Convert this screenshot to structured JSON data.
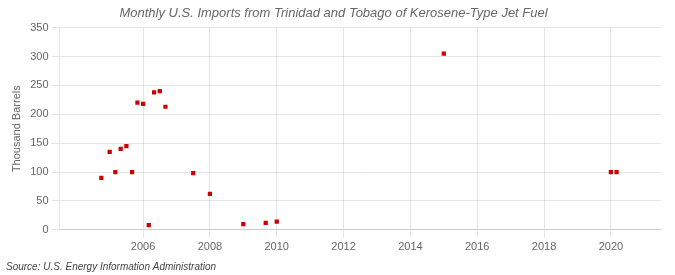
{
  "chart_data": {
    "type": "scatter",
    "title": "Monthly U.S. Imports from Trinidad and Tobago of Kerosene-Type Jet Fuel",
    "ylabel": "Thousand Barrels",
    "annotations": [
      "Source: U.S. Energy Information Administration"
    ],
    "x": [
      2004.75,
      2005.0,
      2005.17,
      2005.33,
      2005.5,
      2005.67,
      2005.83,
      2006.0,
      2006.17,
      2006.33,
      2006.5,
      2006.67,
      2007.5,
      2008.0,
      2009.0,
      2009.67,
      2010.0,
      2015.0,
      2020.0,
      2020.17
    ],
    "values": [
      90,
      135,
      100,
      140,
      145,
      100,
      220,
      218,
      8,
      238,
      240,
      213,
      98,
      62,
      10,
      12,
      14,
      305,
      100,
      100
    ],
    "color": "#cc0000",
    "marker": "square",
    "xlim": [
      2003.5,
      2021.5
    ],
    "ylim": [
      0,
      350
    ],
    "xticks": [
      2006,
      2008,
      2010,
      2012,
      2014,
      2016,
      2018,
      2020
    ],
    "yticks": [
      0,
      50,
      100,
      150,
      200,
      250,
      300,
      350
    ],
    "grid": true
  }
}
